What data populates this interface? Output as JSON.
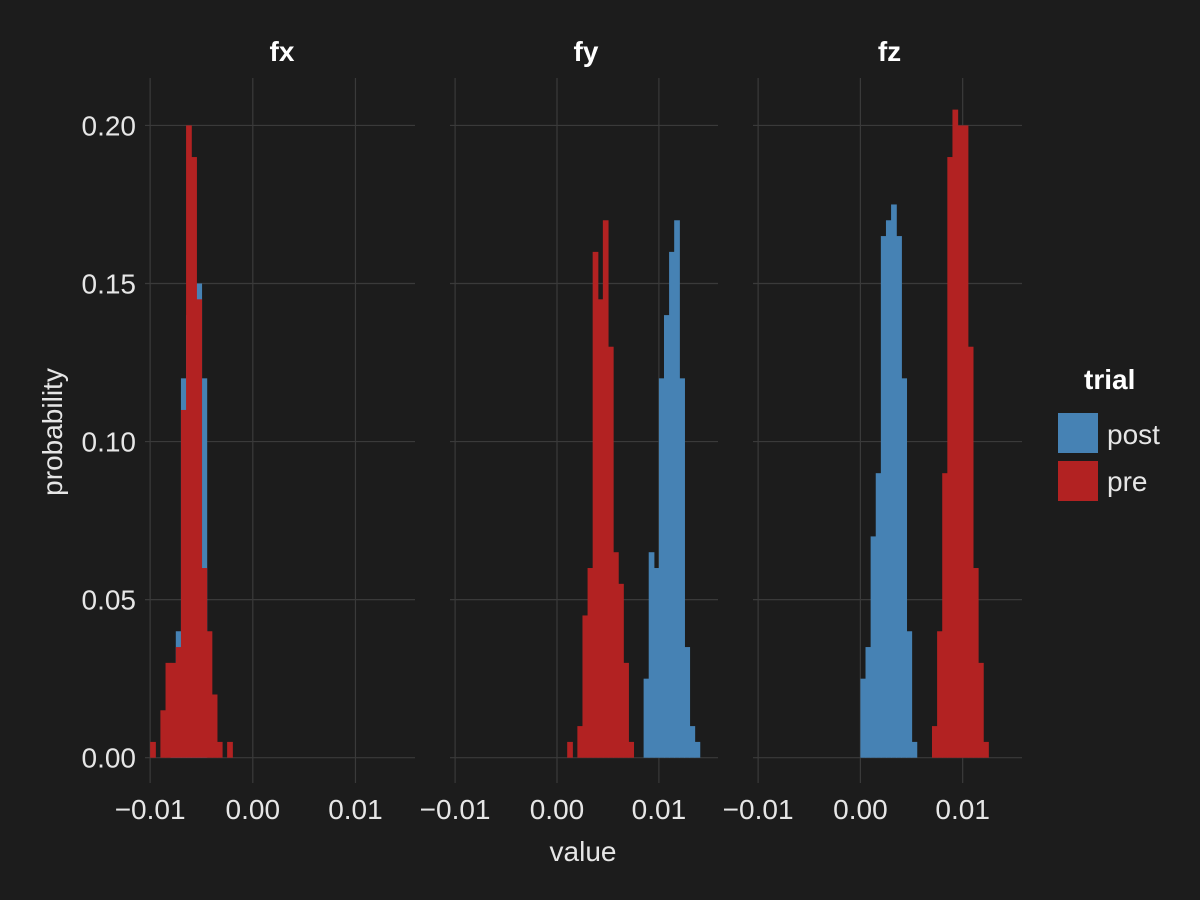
{
  "chart_data": {
    "type": "histogram",
    "x_label": "value",
    "y_label": "probability",
    "y_ticks": [
      0.0,
      0.05,
      0.1,
      0.15,
      0.2
    ],
    "y_tick_labels": [
      "0.00",
      "0.05",
      "0.10",
      "0.15",
      "0.20"
    ],
    "x_ticks": [
      -0.01,
      0.0,
      0.01
    ],
    "x_tick_labels": [
      "−0.01",
      "0.00",
      "0.01"
    ],
    "xlim": [
      -0.0105,
      0.0158
    ],
    "ylim": [
      -0.008,
      0.215
    ],
    "bin_width": 0.0005,
    "grid": true,
    "legend_position": "right",
    "legend": {
      "title": "trial",
      "items": [
        {
          "label": "post",
          "color": "#4682b4"
        },
        {
          "label": "pre",
          "color": "#b22222"
        }
      ]
    },
    "panels": [
      {
        "title": "fx",
        "series": [
          {
            "name": "post",
            "color": "#4682b4",
            "bin_start": -0.008,
            "values": [
              0.02,
              0.04,
              0.12,
              0.14,
              0.12,
              0.15,
              0.12
            ]
          },
          {
            "name": "pre",
            "color": "#b22222",
            "bin_start": -0.01,
            "values": [
              0.005,
              0.0,
              0.015,
              0.03,
              0.03,
              0.035,
              0.11,
              0.2,
              0.19,
              0.145,
              0.06,
              0.04,
              0.02,
              0.005,
              0.0,
              0.005
            ]
          }
        ]
      },
      {
        "title": "fy",
        "series": [
          {
            "name": "post",
            "color": "#4682b4",
            "bin_start": 0.0085,
            "values": [
              0.025,
              0.065,
              0.06,
              0.12,
              0.14,
              0.16,
              0.17,
              0.12,
              0.035,
              0.01,
              0.005
            ]
          },
          {
            "name": "pre",
            "color": "#b22222",
            "bin_start": 0.001,
            "values": [
              0.005,
              0.0,
              0.01,
              0.045,
              0.06,
              0.16,
              0.145,
              0.17,
              0.13,
              0.065,
              0.055,
              0.03,
              0.005
            ]
          }
        ]
      },
      {
        "title": "fz",
        "series": [
          {
            "name": "post",
            "color": "#4682b4",
            "bin_start": 0.0,
            "values": [
              0.025,
              0.035,
              0.07,
              0.09,
              0.165,
              0.17,
              0.175,
              0.165,
              0.12,
              0.04,
              0.005
            ]
          },
          {
            "name": "pre",
            "color": "#b22222",
            "bin_start": 0.007,
            "values": [
              0.01,
              0.04,
              0.09,
              0.19,
              0.205,
              0.2,
              0.2,
              0.13,
              0.06,
              0.03,
              0.005
            ]
          }
        ]
      }
    ]
  }
}
